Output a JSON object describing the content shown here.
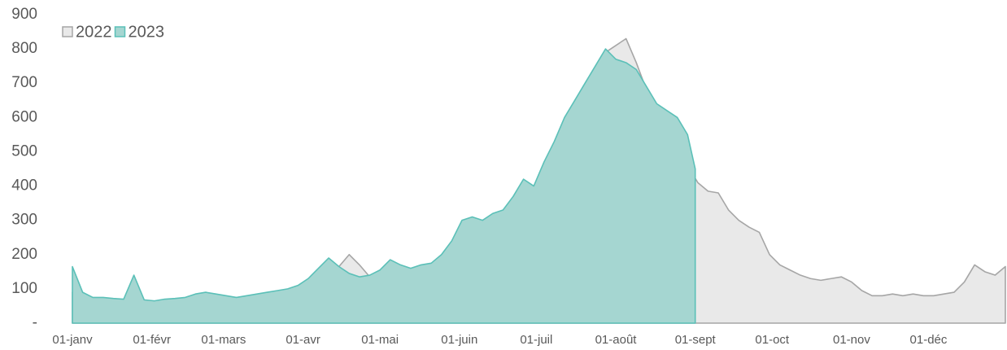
{
  "chart_data": {
    "type": "area",
    "xlim": [
      0,
      364
    ],
    "xticks": [
      {
        "value": 0,
        "label": "01-janv"
      },
      {
        "value": 31,
        "label": "01-févr"
      },
      {
        "value": 59,
        "label": "01-mars"
      },
      {
        "value": 90,
        "label": "01-avr"
      },
      {
        "value": 120,
        "label": "01-mai"
      },
      {
        "value": 151,
        "label": "01-juin"
      },
      {
        "value": 181,
        "label": "01-juil"
      },
      {
        "value": 212,
        "label": "01-août"
      },
      {
        "value": 243,
        "label": "01-sept"
      },
      {
        "value": 273,
        "label": "01-oct"
      },
      {
        "value": 304,
        "label": "01-nov"
      },
      {
        "value": 334,
        "label": "01-déc"
      }
    ],
    "ylim": [
      0,
      900
    ],
    "yticks": [
      {
        "value": 0,
        "label": "-"
      },
      100,
      200,
      300,
      400,
      500,
      600,
      700,
      800,
      900
    ],
    "series": [
      {
        "name": "2022",
        "color": "#a6a6a6",
        "fill": "#e9e9e9",
        "x": [
          0,
          4,
          8,
          12,
          16,
          20,
          24,
          28,
          32,
          36,
          40,
          44,
          48,
          52,
          56,
          60,
          64,
          68,
          72,
          76,
          80,
          84,
          88,
          92,
          96,
          100,
          104,
          108,
          112,
          116,
          120,
          124,
          128,
          132,
          136,
          140,
          144,
          148,
          152,
          156,
          160,
          164,
          168,
          172,
          176,
          180,
          184,
          188,
          192,
          196,
          200,
          204,
          208,
          212,
          216,
          220,
          224,
          228,
          232,
          236,
          240,
          244,
          248,
          252,
          256,
          260,
          264,
          268,
          272,
          276,
          280,
          284,
          288,
          292,
          296,
          300,
          304,
          308,
          312,
          316,
          320,
          324,
          328,
          332,
          336,
          340,
          344,
          348,
          352,
          356,
          360,
          364
        ],
        "values": [
          90,
          80,
          68,
          65,
          62,
          60,
          58,
          55,
          58,
          62,
          60,
          62,
          65,
          68,
          70,
          72,
          75,
          78,
          75,
          72,
          78,
          85,
          90,
          95,
          110,
          130,
          165,
          200,
          170,
          135,
          140,
          150,
          155,
          160,
          165,
          170,
          175,
          200,
          260,
          290,
          300,
          310,
          320,
          330,
          350,
          380,
          430,
          480,
          550,
          620,
          680,
          740,
          790,
          810,
          830,
          760,
          680,
          620,
          570,
          510,
          460,
          410,
          385,
          380,
          330,
          300,
          280,
          265,
          200,
          170,
          155,
          140,
          130,
          125,
          130,
          135,
          120,
          95,
          80,
          80,
          85,
          80,
          85,
          80,
          80,
          85,
          90,
          120,
          170,
          150,
          140,
          165
        ]
      },
      {
        "name": "2023",
        "color": "#5bc0b8",
        "fill": "#a5d6d1",
        "x": [
          0,
          4,
          8,
          12,
          16,
          20,
          24,
          28,
          32,
          36,
          40,
          44,
          48,
          52,
          56,
          60,
          64,
          68,
          72,
          76,
          80,
          84,
          88,
          92,
          96,
          100,
          104,
          108,
          112,
          116,
          120,
          124,
          128,
          132,
          136,
          140,
          144,
          148,
          152,
          156,
          160,
          164,
          168,
          172,
          176,
          180,
          184,
          188,
          192,
          196,
          200,
          204,
          208,
          212,
          216,
          220,
          224,
          228,
          232,
          236,
          240,
          243
        ],
        "values": [
          165,
          90,
          75,
          75,
          72,
          70,
          140,
          68,
          65,
          70,
          72,
          75,
          85,
          90,
          85,
          80,
          75,
          80,
          85,
          90,
          95,
          100,
          110,
          130,
          160,
          190,
          165,
          145,
          135,
          140,
          155,
          185,
          170,
          160,
          170,
          175,
          200,
          240,
          300,
          310,
          300,
          320,
          330,
          370,
          420,
          400,
          470,
          530,
          600,
          650,
          700,
          750,
          800,
          770,
          760,
          740,
          690,
          640,
          620,
          600,
          550,
          450
        ]
      }
    ]
  }
}
